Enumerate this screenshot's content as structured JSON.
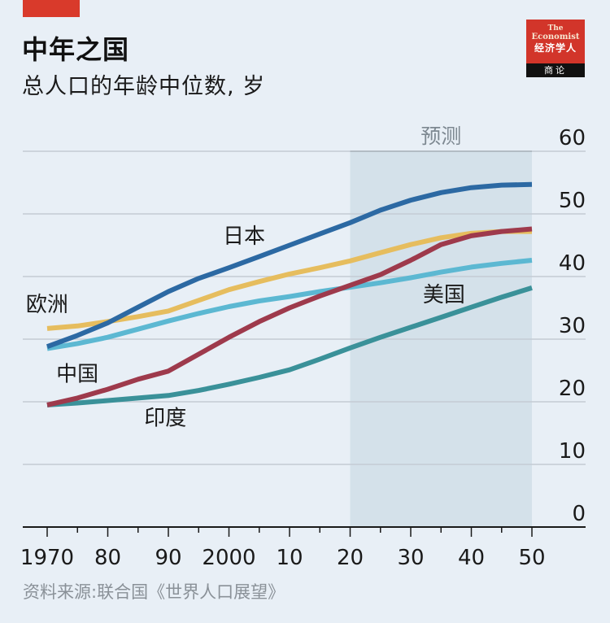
{
  "header": {
    "title": "中年之国",
    "subtitle": "总人口的年龄中位数, 岁"
  },
  "logo": {
    "line1": "The",
    "line2": "Economist",
    "line3": "经济学人",
    "line4": "商论"
  },
  "source": "资料来源:联合国《世界人口展望》",
  "colors": {
    "background": "#e8eff6",
    "forecast_band": "#d4e1ea",
    "japan": "#2c69a3",
    "europe": "#e6bd5e",
    "china": "#9e3a4c",
    "usa": "#5cb8d2",
    "india": "#3a9199",
    "grid": "#c4ccd4",
    "brand_red": "#d93a2b"
  },
  "chart_data": {
    "type": "line",
    "title": "中年之国",
    "subtitle": "总人口的年龄中位数, 岁",
    "xlabel": "",
    "ylabel": "",
    "x": [
      1970,
      1975,
      1980,
      1985,
      1990,
      1995,
      2000,
      2005,
      2010,
      2015,
      2020,
      2025,
      2030,
      2035,
      2040,
      2045,
      2050
    ],
    "xlim": [
      1968,
      2059
    ],
    "ylim": [
      0,
      60
    ],
    "grid": true,
    "y_axis_position": "right",
    "yticks": [
      0,
      10,
      20,
      30,
      40,
      50,
      60
    ],
    "ytick_labels": [
      "0",
      "10",
      "20",
      "30",
      "40",
      "50",
      "60"
    ],
    "xticks": [
      1970,
      1980,
      1990,
      2000,
      2010,
      2020,
      2030,
      2040,
      2050
    ],
    "xtick_labels": [
      "1970",
      "80",
      "90",
      "2000",
      "10",
      "20",
      "30",
      "40",
      "50"
    ],
    "forecast": {
      "label": "预测",
      "from": 2020,
      "to": 2050
    },
    "series": [
      {
        "name": "日本",
        "color_key": "japan",
        "values": [
          28.8,
          30.6,
          32.6,
          35.1,
          37.6,
          39.7,
          41.4,
          43.2,
          45.0,
          46.8,
          48.6,
          50.6,
          52.2,
          53.4,
          54.2,
          54.6,
          54.7
        ]
      },
      {
        "name": "欧洲",
        "color_key": "europe",
        "values": [
          31.7,
          32.1,
          32.8,
          33.6,
          34.5,
          36.2,
          37.9,
          39.2,
          40.4,
          41.4,
          42.5,
          43.8,
          45.1,
          46.2,
          46.9,
          47.2,
          47.2
        ]
      },
      {
        "name": "中国",
        "color_key": "china",
        "values": [
          19.5,
          20.6,
          22.0,
          23.6,
          24.9,
          27.6,
          30.3,
          32.8,
          35.0,
          36.9,
          38.6,
          40.3,
          42.6,
          45.1,
          46.5,
          47.2,
          47.6
        ]
      },
      {
        "name": "美国",
        "color_key": "usa",
        "values": [
          28.5,
          29.3,
          30.3,
          31.6,
          32.9,
          34.1,
          35.2,
          36.1,
          36.8,
          37.6,
          38.3,
          39.0,
          39.8,
          40.7,
          41.5,
          42.1,
          42.6
        ]
      },
      {
        "name": "印度",
        "color_key": "india",
        "values": [
          19.5,
          19.8,
          20.2,
          20.6,
          21.0,
          21.8,
          22.8,
          23.9,
          25.1,
          26.8,
          28.6,
          30.3,
          31.9,
          33.5,
          35.1,
          36.7,
          38.2
        ]
      }
    ],
    "annotations": [
      "日本",
      "欧洲",
      "中国",
      "美国",
      "印度",
      "预测"
    ]
  }
}
